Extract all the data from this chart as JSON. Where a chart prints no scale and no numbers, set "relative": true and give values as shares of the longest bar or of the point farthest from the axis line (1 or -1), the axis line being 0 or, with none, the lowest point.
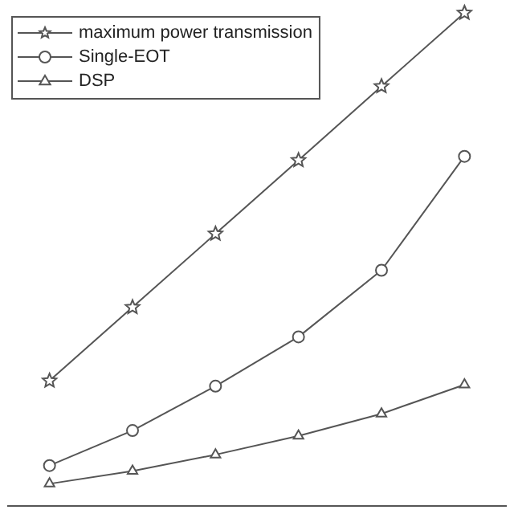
{
  "chart_data": {
    "type": "line",
    "relative": true,
    "categories": [
      null,
      null,
      null,
      null,
      null,
      null
    ],
    "grid": false,
    "legend": "top left",
    "line_style": "solid",
    "series": [
      {
        "name": "maximum power transmission",
        "color": "#555555",
        "marker": "star",
        "values": [
          0.254,
          0.403,
          0.552,
          0.701,
          0.851,
          1
        ]
      },
      {
        "name": "Single-EOT",
        "color": "#555555",
        "marker": "circle",
        "values": [
          0.082,
          0.153,
          0.243,
          0.343,
          0.478,
          0.709
        ]
      },
      {
        "name": "DSP",
        "color": "#555555",
        "marker": "triangle",
        "values": [
          0.045,
          0.071,
          0.104,
          0.142,
          0.187,
          0.246
        ]
      }
    ]
  }
}
